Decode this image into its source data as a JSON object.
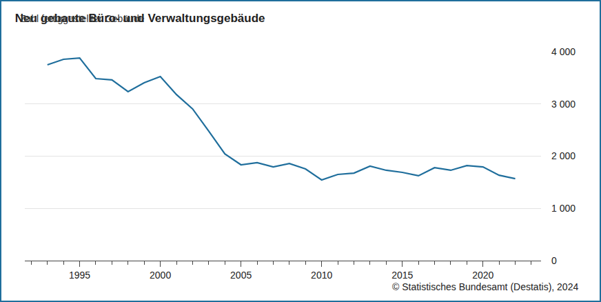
{
  "chart_data": {
    "type": "line",
    "title": "Neu gebaute Büro- und Verwaltungsgebäude",
    "subtitle": "Zahl fertiggestellter Gebäude",
    "source": "© Statistisches Bundesamt (Destatis), 2024",
    "x": [
      1993,
      1994,
      1995,
      1996,
      1997,
      1998,
      1999,
      2000,
      2001,
      2002,
      2003,
      2004,
      2005,
      2006,
      2007,
      2008,
      2009,
      2010,
      2011,
      2012,
      2013,
      2014,
      2015,
      2016,
      2017,
      2018,
      2019,
      2020,
      2021,
      2022
    ],
    "values": [
      3750,
      3855,
      3880,
      3485,
      3460,
      3235,
      3405,
      3525,
      3180,
      2905,
      2480,
      2045,
      1835,
      1875,
      1795,
      1860,
      1755,
      1545,
      1650,
      1675,
      1810,
      1730,
      1690,
      1625,
      1780,
      1730,
      1820,
      1795,
      1635,
      1570
    ],
    "color": "#1f6e9c",
    "xlim": [
      1991.6,
      2023.6
    ],
    "xticks": [
      1995,
      2000,
      2005,
      2010,
      2015,
      2020
    ],
    "ylim": [
      0,
      4000
    ],
    "yticks": [
      0,
      {
        "value": 1000,
        "label": "1 000"
      },
      {
        "value": 2000,
        "label": "2 000"
      },
      {
        "value": 3000,
        "label": "3 000"
      },
      {
        "value": 4000,
        "label": "4 000"
      }
    ],
    "grid": true
  }
}
